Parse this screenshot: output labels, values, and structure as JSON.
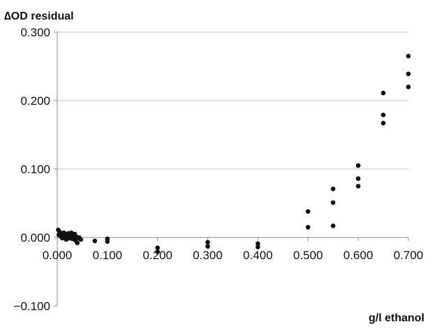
{
  "chart_data": {
    "type": "scatter",
    "title": "",
    "xlabel": "g/l ethanol",
    "ylabel": "∆OD residual",
    "xlim": [
      0,
      0.7
    ],
    "ylim": [
      -0.1,
      0.3
    ],
    "x_ticks": [
      "0.000",
      "0.100",
      "0.200",
      "0.300",
      "0.400",
      "0.500",
      "0.600",
      "0.700"
    ],
    "y_ticks": [
      "0.300",
      "0.200",
      "0.100",
      "0.000",
      "−0.100"
    ],
    "x_tick_values": [
      0,
      0.1,
      0.2,
      0.3,
      0.4,
      0.5,
      0.6,
      0.7
    ],
    "y_tick_values": [
      0.3,
      0.2,
      0.1,
      0.0,
      -0.1
    ],
    "grid": "horizontal",
    "legend": "none",
    "marker_color": "#111111",
    "grid_color": "#c8c8c8",
    "axis_color": "#888888",
    "series": [
      {
        "x": [
          0.002,
          0.003,
          0.005,
          0.006,
          0.008,
          0.01,
          0.012,
          0.013,
          0.015,
          0.016,
          0.018,
          0.02,
          0.022,
          0.023,
          0.025,
          0.026,
          0.028,
          0.03,
          0.032,
          0.033,
          0.035,
          0.036,
          0.038,
          0.04,
          0.042,
          0.044,
          0.047,
          0.075,
          0.1,
          0.1,
          0.2,
          0.2,
          0.3,
          0.3,
          0.4,
          0.4,
          0.5,
          0.5,
          0.55,
          0.55,
          0.55,
          0.6,
          0.6,
          0.6,
          0.65,
          0.65,
          0.65,
          0.7,
          0.7,
          0.7
        ],
        "y": [
          0.011,
          0.004,
          0.008,
          0.002,
          0.006,
          -0.001,
          0.003,
          0.007,
          0.0,
          0.005,
          -0.003,
          0.002,
          0.006,
          -0.001,
          0.004,
          0.001,
          0.007,
          -0.002,
          0.003,
          0.0,
          0.005,
          -0.004,
          0.001,
          -0.008,
          -0.001,
          0.0,
          -0.003,
          -0.005,
          -0.002,
          -0.006,
          -0.015,
          -0.021,
          -0.007,
          -0.013,
          -0.009,
          -0.014,
          0.038,
          0.015,
          0.071,
          0.051,
          0.017,
          0.105,
          0.086,
          0.075,
          0.211,
          0.179,
          0.167,
          0.265,
          0.239,
          0.22
        ]
      }
    ]
  }
}
